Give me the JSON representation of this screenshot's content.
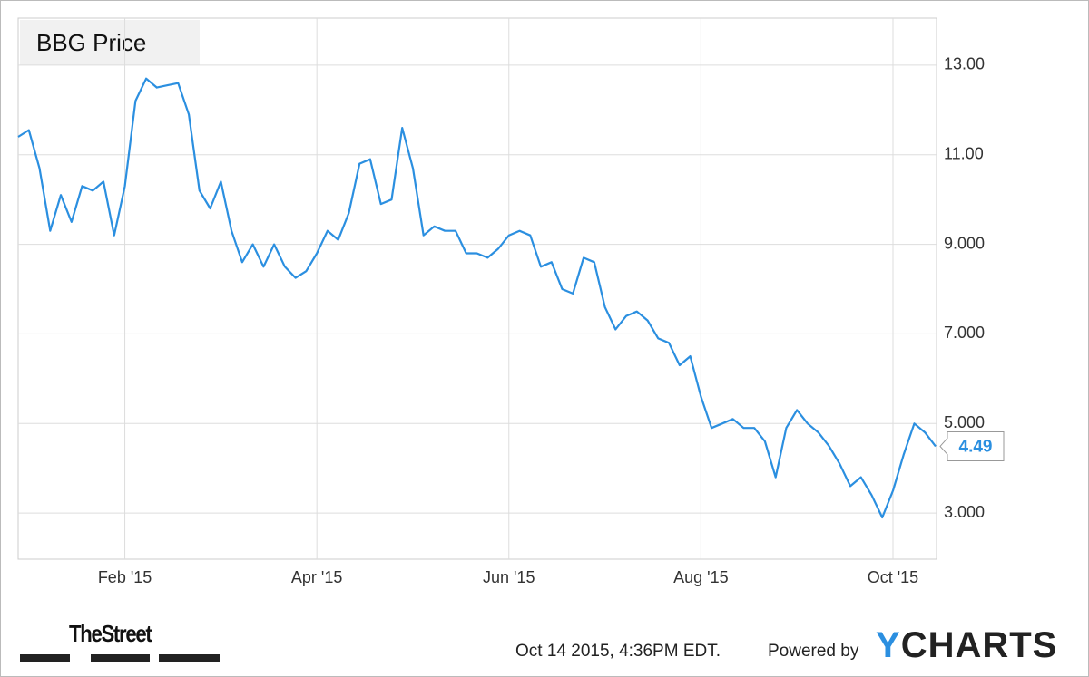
{
  "chart_data": {
    "type": "line",
    "title": "BBG Price",
    "categories": [
      null,
      null,
      null,
      null,
      null,
      null,
      null,
      null,
      null,
      null,
      "Feb '15",
      null,
      null,
      null,
      null,
      null,
      null,
      null,
      null,
      null,
      null,
      null,
      null,
      null,
      null,
      null,
      null,
      null,
      "Apr '15",
      null,
      null,
      null,
      null,
      null,
      null,
      null,
      null,
      null,
      null,
      null,
      null,
      null,
      null,
      null,
      null,
      null,
      "Jun '15",
      null,
      null,
      null,
      null,
      null,
      null,
      null,
      null,
      null,
      null,
      null,
      null,
      null,
      null,
      null,
      null,
      null,
      "Aug '15",
      null,
      null,
      null,
      null,
      null,
      null,
      null,
      null,
      null,
      null,
      null,
      null,
      null,
      null,
      null,
      null,
      null,
      "Oct '15",
      null,
      null,
      null,
      null
    ],
    "series": [
      {
        "name": "BBG Price",
        "color": "#2b8fe0",
        "values": [
          11.4,
          11.55,
          10.7,
          9.3,
          10.1,
          9.5,
          10.3,
          10.2,
          10.4,
          9.2,
          10.3,
          12.2,
          12.7,
          12.5,
          12.55,
          12.6,
          11.9,
          10.2,
          9.8,
          10.4,
          9.3,
          8.6,
          9.0,
          8.5,
          9.0,
          8.5,
          8.25,
          8.4,
          8.8,
          9.3,
          9.1,
          9.7,
          10.8,
          10.9,
          9.9,
          10.0,
          11.6,
          10.7,
          9.2,
          9.4,
          9.3,
          9.3,
          8.8,
          8.8,
          8.7,
          8.9,
          9.2,
          9.3,
          9.2,
          8.5,
          8.6,
          8.0,
          7.9,
          8.7,
          8.6,
          7.6,
          7.1,
          7.4,
          7.5,
          7.3,
          6.9,
          6.8,
          6.3,
          6.5,
          5.6,
          4.9,
          5.0,
          5.1,
          4.9,
          4.9,
          4.6,
          3.8,
          4.9,
          5.3,
          5.0,
          4.8,
          4.5,
          4.1,
          3.6,
          3.8,
          3.4,
          2.9,
          3.5,
          4.3,
          5.0,
          4.8,
          4.49
        ]
      }
    ],
    "ylim": [
      1.97,
      14.05
    ],
    "yticks": [
      {
        "value": 13,
        "label": "13.00"
      },
      {
        "value": 11,
        "label": "11.00"
      },
      {
        "value": 9,
        "label": "9.000"
      },
      {
        "value": 7,
        "label": "7.000"
      },
      {
        "value": 5,
        "label": "5.000"
      },
      {
        "value": 3,
        "label": "3.000"
      }
    ],
    "grid": true,
    "timestamp": "Oct 14 2015, 4:36PM EDT.",
    "powered_by": "Powered by",
    "brand": "YCHARTS",
    "publisher": "TheStreet"
  }
}
